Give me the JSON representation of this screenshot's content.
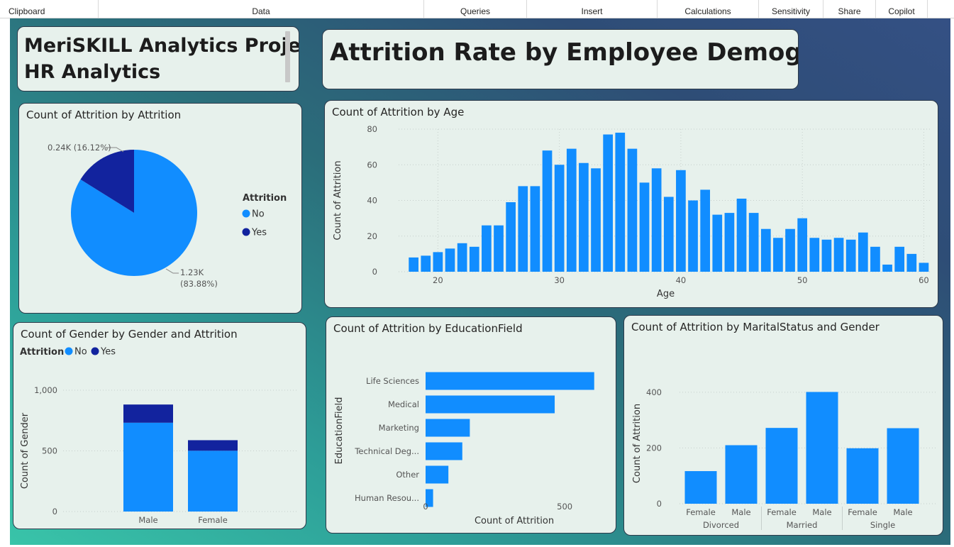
{
  "ribbon": {
    "groups": [
      {
        "label": "Clipboard"
      },
      {
        "label": "Data"
      },
      {
        "label": "Queries"
      },
      {
        "label": "Insert"
      },
      {
        "label": "Calculations"
      },
      {
        "label": "Sensitivity"
      },
      {
        "label": "Share"
      },
      {
        "label": "Copilot"
      }
    ]
  },
  "header": {
    "project_line1": "MeriSKILL Analytics Project",
    "project_line2": "HR Analytics",
    "dashboard_title": "Attrition Rate by Employee Demography"
  },
  "colors": {
    "no": "#118dff",
    "yes": "#12239e",
    "card": "#e7f1ec"
  },
  "chart_data": [
    {
      "id": "attrition-pie",
      "type": "pie",
      "title": "Count of Attrition by Attrition",
      "legend_title": "Attrition",
      "legend_position": "right",
      "slices": [
        {
          "label": "No",
          "value": 1233,
          "percent": 83.88,
          "data_label": "1.23K",
          "pct_label": "(83.88%)"
        },
        {
          "label": "Yes",
          "value": 237,
          "percent": 16.12,
          "data_label": "0.24K (16.12%)"
        }
      ]
    },
    {
      "id": "age-bar",
      "type": "bar",
      "title": "Count of Attrition by Age",
      "xlabel": "Age",
      "ylabel": "Count of Attrition",
      "xlim": [
        17,
        60.5
      ],
      "ylim": [
        0,
        80
      ],
      "xticks": [
        20,
        30,
        40,
        50,
        60
      ],
      "yticks": [
        0,
        20,
        40,
        60,
        80
      ],
      "grid": true,
      "x": [
        18,
        19,
        20,
        21,
        22,
        23,
        24,
        25,
        26,
        27,
        28,
        29,
        30,
        31,
        32,
        33,
        34,
        35,
        36,
        37,
        38,
        39,
        40,
        41,
        42,
        43,
        44,
        45,
        46,
        47,
        48,
        49,
        50,
        51,
        52,
        53,
        54,
        55,
        56,
        57,
        58,
        59,
        60
      ],
      "values": [
        8,
        9,
        11,
        13,
        16,
        14,
        26,
        26,
        39,
        48,
        48,
        68,
        60,
        69,
        61,
        58,
        77,
        78,
        69,
        50,
        58,
        42,
        57,
        40,
        46,
        32,
        33,
        41,
        33,
        24,
        19,
        24,
        30,
        19,
        18,
        19,
        18,
        22,
        14,
        4,
        14,
        10,
        5
      ]
    },
    {
      "id": "gender-stacked-bar",
      "type": "bar",
      "stacked": true,
      "title": "Count of Gender by Gender and Attrition",
      "legend_title": "Attrition",
      "legend_position": "top-left",
      "xlabel": "Gender",
      "ylabel": "Count of Gender",
      "categories": [
        "Male",
        "Female"
      ],
      "ylim": [
        0,
        1000
      ],
      "yticks": [
        "0",
        "500",
        "1,000"
      ],
      "grid": true,
      "series": [
        {
          "name": "No",
          "values": [
            732,
            501
          ]
        },
        {
          "name": "Yes",
          "values": [
            150,
            87
          ]
        }
      ]
    },
    {
      "id": "education-hbar",
      "type": "bar",
      "orientation": "horizontal",
      "title": "Count of Attrition by EducationField",
      "xlabel": "Count of Attrition",
      "ylabel": "EducationField",
      "categories": [
        "Life Sciences",
        "Medical",
        "Marketing",
        "Technical Deg...",
        "Other",
        "Human Resou..."
      ],
      "values": [
        606,
        464,
        159,
        132,
        82,
        27
      ],
      "xlim": [
        0,
        650
      ],
      "xticks": [
        0,
        500
      ]
    },
    {
      "id": "marital-bar",
      "type": "bar",
      "title": "Count of Attrition by MaritalStatus and Gender",
      "xlabel": "Gender",
      "ylabel": "Count of Attrition",
      "categories": [
        "Female",
        "Male",
        "Female",
        "Male",
        "Female",
        "Male"
      ],
      "groups": [
        "Divorced",
        "Married",
        "Single"
      ],
      "values": [
        117,
        210,
        272,
        401,
        199,
        271
      ],
      "ylim": [
        0,
        420
      ],
      "yticks": [
        0,
        200,
        400
      ],
      "grid": true
    }
  ]
}
